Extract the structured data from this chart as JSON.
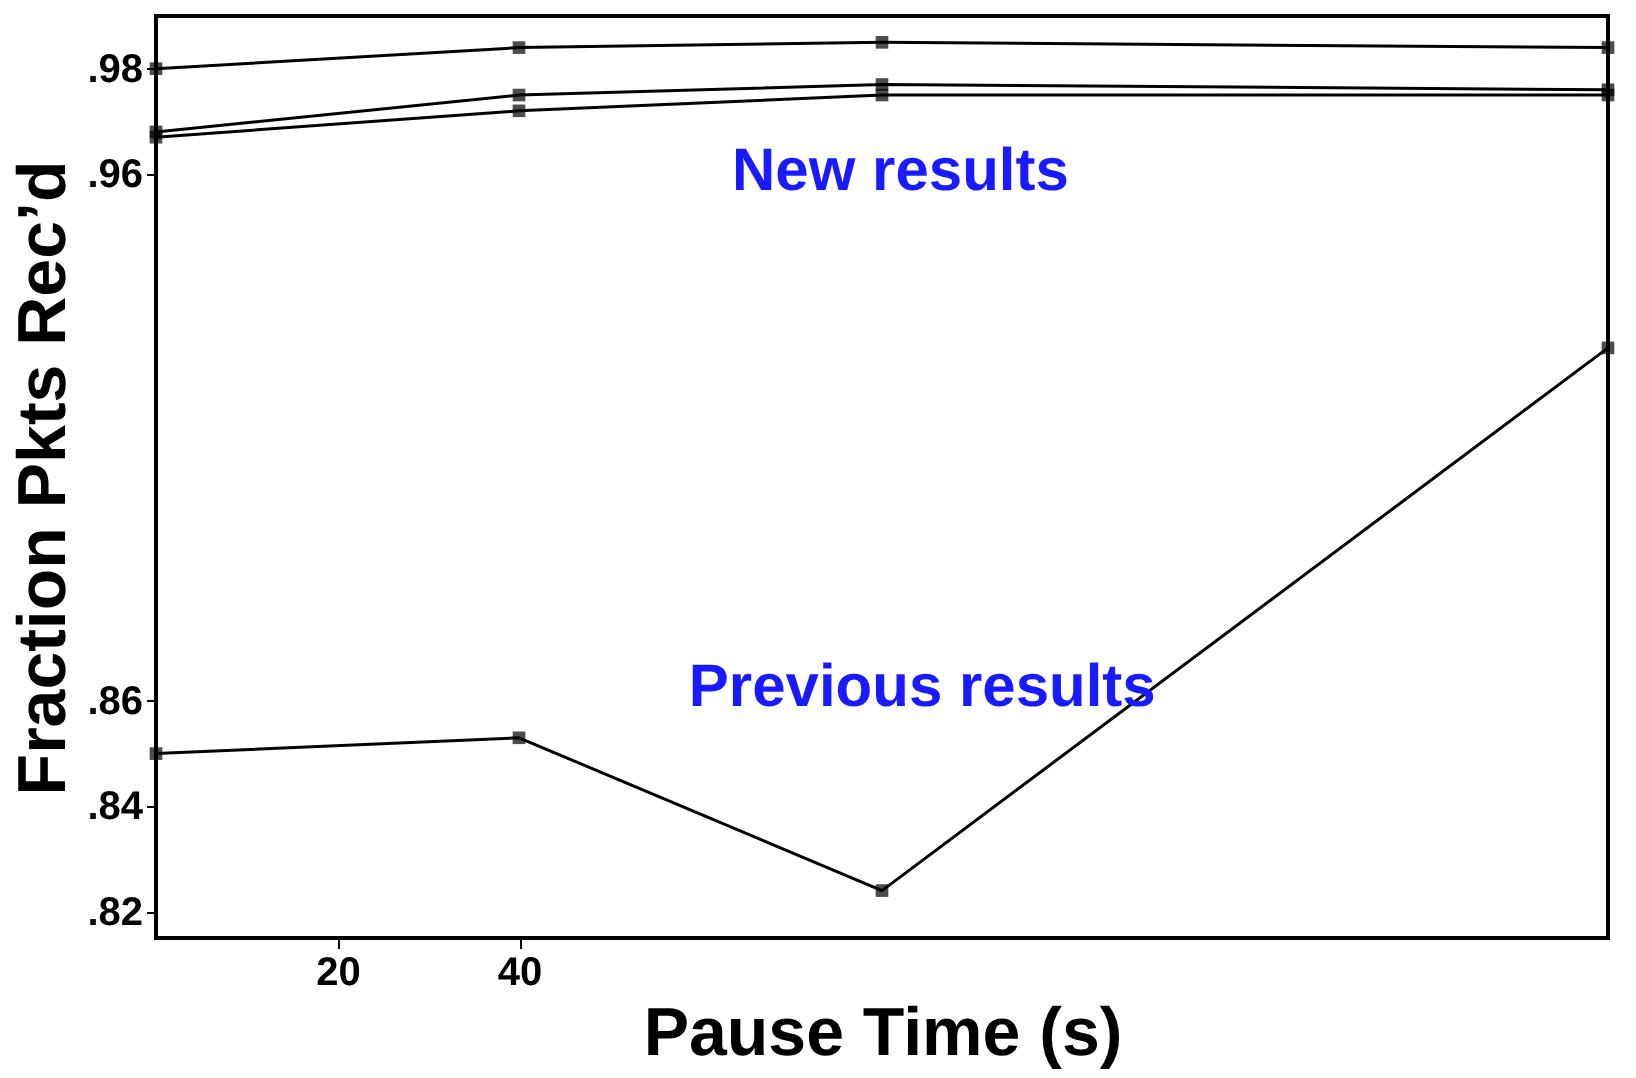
{
  "chart_data": {
    "type": "line",
    "xlabel": "Pause Time (s)",
    "ylabel": "Fraction Pkts Rec’d",
    "x": [
      0,
      40,
      80,
      160
    ],
    "series": [
      {
        "color": "#000000",
        "values": [
          0.98,
          0.984,
          0.985,
          0.984
        ]
      },
      {
        "color": "#000000",
        "values": [
          0.968,
          0.975,
          0.977,
          0.976
        ]
      },
      {
        "color": "#000000",
        "values": [
          0.967,
          0.972,
          0.975,
          0.975
        ]
      },
      {
        "color": "#000000",
        "values": [
          0.85,
          0.853,
          0.824,
          0.927
        ]
      }
    ],
    "xlim": [
      0,
      160
    ],
    "xticks": [
      20,
      40
    ],
    "ylim": [
      0.815,
      0.99
    ],
    "yticks": [
      {
        "value": 0.82,
        "label": ".82"
      },
      {
        "value": 0.84,
        "label": ".84"
      },
      {
        "value": 0.86,
        "label": ".86"
      },
      {
        "value": 0.96,
        "label": ".96"
      },
      {
        "value": 0.98,
        "label": ".98"
      }
    ],
    "annotations": [
      "New results",
      "Previous results"
    ],
    "marker": "square",
    "line_style": "solid",
    "grid": false
  }
}
